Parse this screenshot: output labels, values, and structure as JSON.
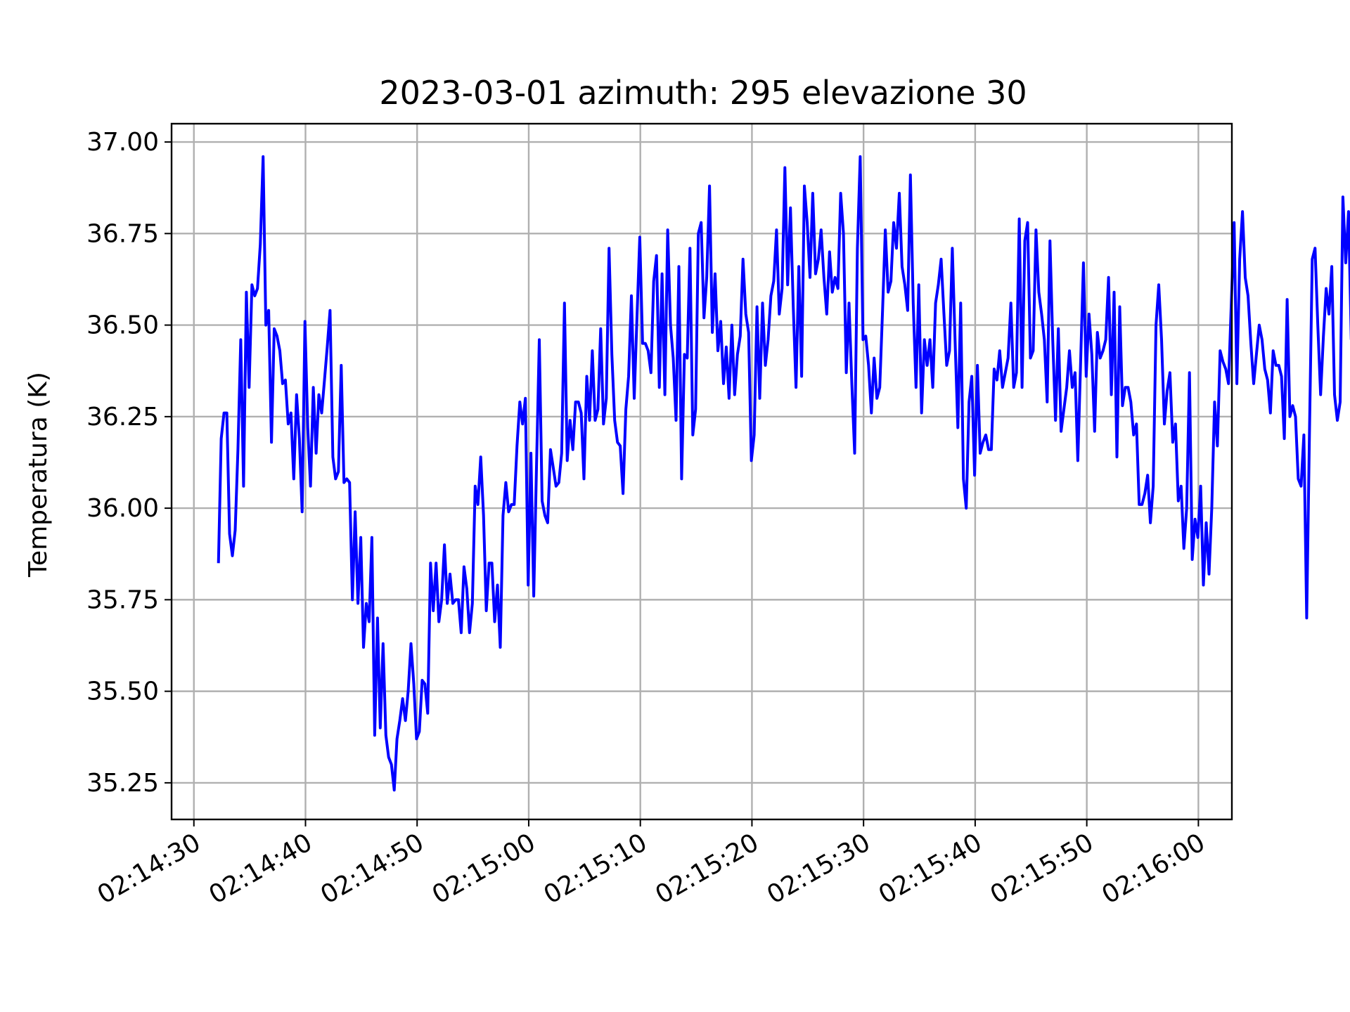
{
  "chart_data": {
    "type": "line",
    "title": "2023-03-01  azimuth: 295 elevazione 30",
    "xlabel": "",
    "ylabel": "Temperatura (K)",
    "x_tick_labels": [
      "02:14:30",
      "02:14:40",
      "02:14:50",
      "02:15:00",
      "02:15:10",
      "02:15:20",
      "02:15:30",
      "02:15:40",
      "02:15:50",
      "02:16:00"
    ],
    "y_tick_labels": [
      "35.25",
      "35.50",
      "35.75",
      "36.00",
      "36.25",
      "36.50",
      "36.75",
      "37.00"
    ],
    "y_ticks": [
      35.25,
      35.5,
      35.75,
      36.0,
      36.25,
      36.5,
      36.75,
      37.0
    ],
    "xlim": [
      "02:14:28",
      "02:16:03"
    ],
    "ylim": [
      35.15,
      37.05
    ],
    "grid": true,
    "color": "#0000ff",
    "series": [
      {
        "time_start": "02:14:32.2",
        "sample_interval_s": 0.25,
        "values": [
          35.85,
          36.19,
          36.26,
          36.26,
          35.93,
          35.87,
          35.94,
          36.16,
          36.46,
          36.06,
          36.59,
          36.33,
          36.61,
          36.58,
          36.6,
          36.72,
          36.96,
          36.5,
          36.54,
          36.18,
          36.49,
          36.47,
          36.43,
          36.34,
          36.35,
          36.23,
          36.26,
          36.08,
          36.31,
          36.19,
          35.99,
          36.51,
          36.22,
          36.06,
          36.33,
          36.15,
          36.31,
          36.26,
          36.35,
          36.44,
          36.54,
          36.14,
          36.08,
          36.1,
          36.39,
          36.07,
          36.08,
          36.07,
          35.75,
          35.99,
          35.74,
          35.92,
          35.62,
          35.74,
          35.69,
          35.92,
          35.38,
          35.7,
          35.4,
          35.63,
          35.38,
          35.32,
          35.3,
          35.23,
          35.37,
          35.42,
          35.48,
          35.42,
          35.5,
          35.63,
          35.52,
          35.37,
          35.39,
          35.53,
          35.52,
          35.44,
          35.85,
          35.72,
          35.85,
          35.69,
          35.75,
          35.9,
          35.74,
          35.82,
          35.74,
          35.75,
          35.75,
          35.66,
          35.84,
          35.78,
          35.66,
          35.74,
          36.06,
          36.01,
          36.14,
          35.98,
          35.72,
          35.85,
          35.85,
          35.69,
          35.79,
          35.62,
          35.98,
          36.07,
          35.99,
          36.01,
          36.01,
          36.17,
          36.29,
          36.23,
          36.3,
          35.79,
          36.15,
          35.76,
          36.12,
          36.46,
          36.02,
          35.98,
          35.96,
          36.16,
          36.11,
          36.06,
          36.07,
          36.15,
          36.56,
          36.13,
          36.24,
          36.16,
          36.29,
          36.29,
          36.26,
          36.08,
          36.36,
          36.24,
          36.43,
          36.24,
          36.27,
          36.49,
          36.23,
          36.3,
          36.71,
          36.42,
          36.24,
          36.18,
          36.17,
          36.04,
          36.27,
          36.36,
          36.58,
          36.3,
          36.52,
          36.74,
          36.45,
          36.45,
          36.43,
          36.37,
          36.62,
          36.69,
          36.33,
          36.64,
          36.31,
          36.76,
          36.5,
          36.41,
          36.24,
          36.66,
          36.08,
          36.42,
          36.41,
          36.71,
          36.2,
          36.27,
          36.75,
          36.78,
          36.52,
          36.63,
          36.88,
          36.48,
          36.64,
          36.43,
          36.51,
          36.34,
          36.44,
          36.3,
          36.5,
          36.31,
          36.42,
          36.47,
          36.68,
          36.53,
          36.48,
          36.13,
          36.2,
          36.55,
          36.3,
          36.56,
          36.39,
          36.46,
          36.58,
          36.62,
          36.76,
          36.53,
          36.6,
          36.93,
          36.61,
          36.82,
          36.55,
          36.33,
          36.66,
          36.36,
          36.88,
          36.78,
          36.63,
          36.86,
          36.64,
          36.68,
          36.76,
          36.63,
          36.53,
          36.7,
          36.59,
          36.63,
          36.6,
          36.86,
          36.75,
          36.37,
          36.56,
          36.34,
          36.15,
          36.71,
          36.96,
          36.46,
          36.47,
          36.39,
          36.26,
          36.41,
          36.3,
          36.33,
          36.54,
          36.76,
          36.59,
          36.62,
          36.78,
          36.71,
          36.86,
          36.66,
          36.61,
          36.54,
          36.91,
          36.56,
          36.33,
          36.61,
          36.26,
          36.46,
          36.39,
          36.46,
          36.33,
          36.56,
          36.61,
          36.68,
          36.53,
          36.39,
          36.43,
          36.71,
          36.46,
          36.22,
          36.56,
          36.08,
          36.0,
          36.29,
          36.36,
          36.09,
          36.39,
          36.15,
          36.18,
          36.2,
          36.16,
          36.16,
          36.38,
          36.35,
          36.43,
          36.33,
          36.37,
          36.41,
          36.56,
          36.33,
          36.37,
          36.79,
          36.33,
          36.73,
          36.78,
          36.41,
          36.43,
          36.76,
          36.59,
          36.53,
          36.46,
          36.29,
          36.73,
          36.46,
          36.24,
          36.49,
          36.21,
          36.27,
          36.33,
          36.43,
          36.33,
          36.37,
          36.13,
          36.4,
          36.67,
          36.36,
          36.53,
          36.42,
          36.21,
          36.48,
          36.41,
          36.43,
          36.46,
          36.63,
          36.31,
          36.59,
          36.14,
          36.55,
          36.28,
          36.33,
          36.33,
          36.29,
          36.2,
          36.23,
          36.01,
          36.01,
          36.04,
          36.09,
          35.96,
          36.06,
          36.5,
          36.61,
          36.46,
          36.23,
          36.32,
          36.37,
          36.18,
          36.23,
          36.02,
          36.06,
          35.89,
          36.0,
          36.37,
          35.86,
          35.97,
          35.92,
          36.06,
          35.79,
          35.96,
          35.82,
          36.0,
          36.29,
          36.17,
          36.43,
          36.4,
          36.38,
          36.34,
          36.56,
          36.78,
          36.34,
          36.68,
          36.81,
          36.63,
          36.58,
          36.45,
          36.34,
          36.42,
          36.5,
          36.46,
          36.38,
          36.35,
          36.26,
          36.43,
          36.39,
          36.39,
          36.36,
          36.19,
          36.57,
          36.25,
          36.28,
          36.25,
          36.08,
          36.06,
          36.2,
          35.7,
          36.2,
          36.68,
          36.71,
          36.5,
          36.31,
          36.47,
          36.6,
          36.53,
          36.66,
          36.31,
          36.24,
          36.29,
          36.85,
          36.67,
          36.81,
          36.46
        ]
      }
    ]
  }
}
